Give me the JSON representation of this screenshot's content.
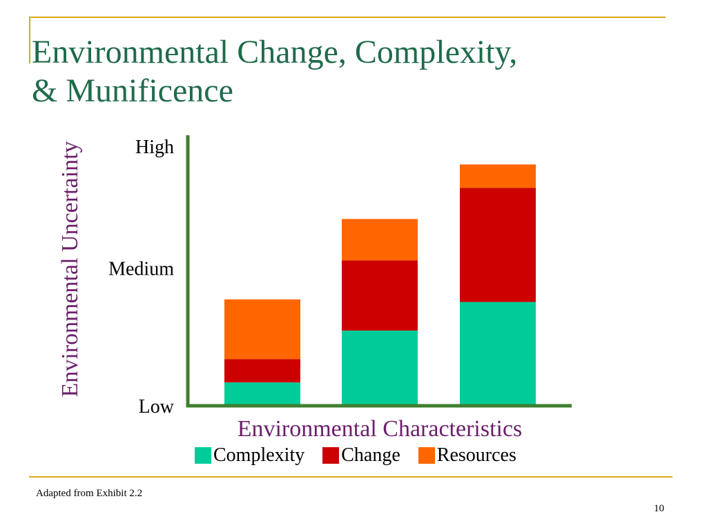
{
  "slide": {
    "title_line1": "Environmental Change, Complexity,",
    "title_line2": "& Munificence",
    "source": "Adapted from Exhibit 2.2",
    "page_number": "10"
  },
  "colors": {
    "Complexity": "#00cc99",
    "Change": "#cc0000",
    "Resources": "#ff6600",
    "axis": "#3f7f2f",
    "title": "#1f6b4b",
    "axis_label": "#6b1f6b",
    "frame": "#d9a91a"
  },
  "chart_data": {
    "type": "bar",
    "stacked": true,
    "title": "Environmental Change, Complexity, & Munificence",
    "xlabel": "Environmental Characteristics",
    "ylabel": "Environmental Uncertainty",
    "ylim": [
      0,
      100
    ],
    "y_ticks": [
      {
        "value": 0,
        "label": "Low"
      },
      {
        "value": 53,
        "label": "Medium"
      },
      {
        "value": 100,
        "label": "High"
      }
    ],
    "categories": [
      "",
      "",
      ""
    ],
    "series": [
      {
        "name": "Complexity",
        "values": [
          9,
          29,
          40
        ]
      },
      {
        "name": "Change",
        "values": [
          9,
          27,
          44
        ]
      },
      {
        "name": "Resources",
        "values": [
          23,
          16,
          9
        ]
      }
    ],
    "legend_position": "bottom",
    "grid": false
  }
}
